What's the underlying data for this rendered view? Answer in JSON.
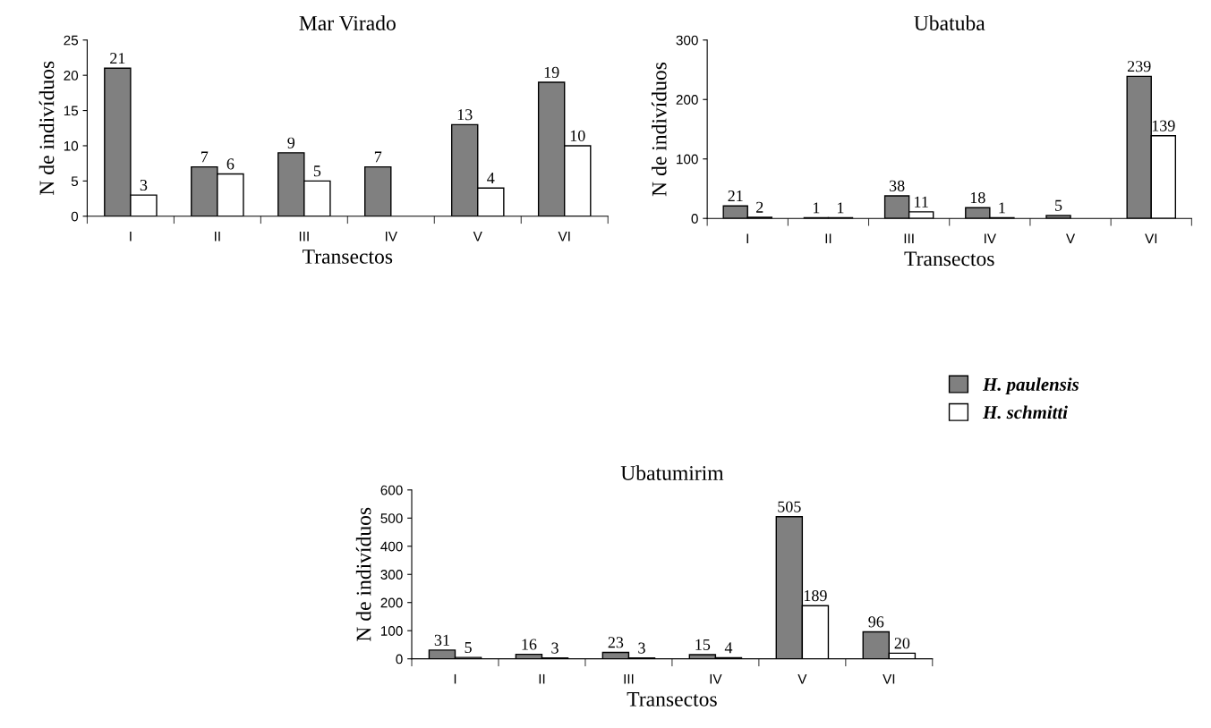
{
  "chart_data": [
    {
      "type": "bar",
      "title": "Mar Virado",
      "xlabel": "Transectos",
      "ylabel": "N de indivíduos",
      "categories": [
        "I",
        "II",
        "III",
        "IV",
        "V",
        "VI"
      ],
      "ylim": [
        0,
        25
      ],
      "yticks": [
        0,
        5,
        10,
        15,
        20,
        25
      ],
      "data_labels": true,
      "grid": false,
      "legend": false,
      "series": [
        {
          "color": "#808080",
          "values": [
            21,
            7,
            9,
            7,
            13,
            19
          ]
        },
        {
          "color": "#ffffff",
          "values": [
            3,
            6,
            5,
            null,
            4,
            10
          ]
        }
      ]
    },
    {
      "type": "bar",
      "title": "Ubatuba",
      "xlabel": "Transectos",
      "ylabel": "N de indivíduos",
      "categories": [
        "I",
        "II",
        "III",
        "IV",
        "V",
        "VI"
      ],
      "ylim": [
        0,
        300
      ],
      "yticks": [
        0,
        100,
        200,
        300
      ],
      "data_labels": true,
      "grid": false,
      "legend": false,
      "series": [
        {
          "color": "#808080",
          "values": [
            21,
            1,
            38,
            18,
            5,
            239
          ]
        },
        {
          "color": "#ffffff",
          "values": [
            2,
            1,
            11,
            1,
            null,
            139
          ]
        }
      ]
    },
    {
      "type": "bar",
      "title": "Ubatumirim",
      "xlabel": "Transectos",
      "ylabel": "N de indivíduos",
      "categories": [
        "I",
        "II",
        "III",
        "IV",
        "V",
        "VI"
      ],
      "ylim": [
        0,
        600
      ],
      "yticks": [
        0,
        100,
        200,
        300,
        400,
        500,
        600
      ],
      "data_labels": true,
      "grid": false,
      "legend": "top right",
      "series": [
        {
          "name": "H. paulensis",
          "color": "#808080",
          "values": [
            31,
            16,
            23,
            15,
            505,
            96
          ]
        },
        {
          "name": "H. schmitti",
          "color": "#ffffff",
          "values": [
            5,
            3,
            3,
            4,
            189,
            20
          ]
        }
      ]
    }
  ]
}
